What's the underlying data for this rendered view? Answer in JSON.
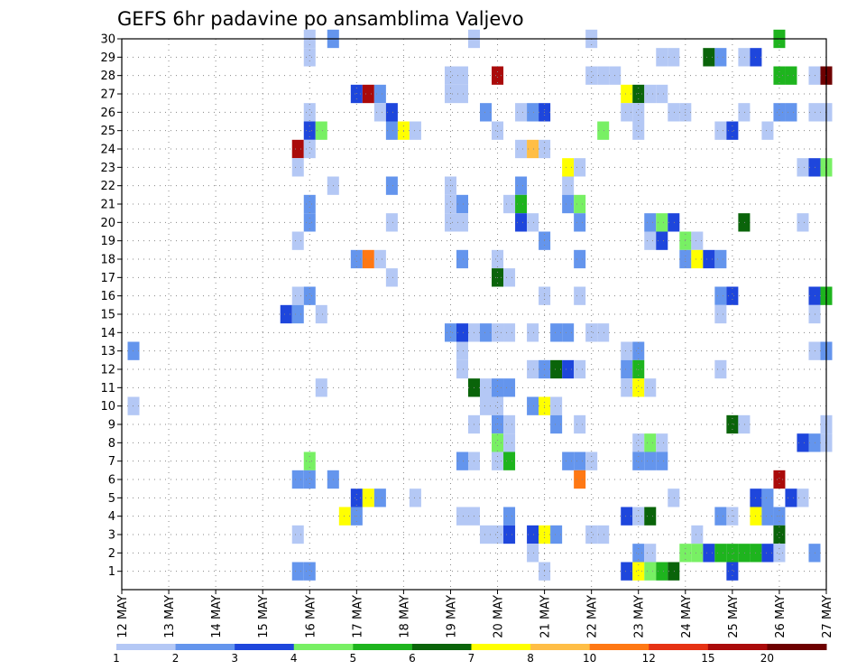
{
  "chart_data": {
    "type": "heatmap",
    "title": "GEFS 6hr padavine po ansamblima Valjevo",
    "xlabel": "",
    "ylabel": "",
    "x_ticks": [
      "12 MAY",
      "13 MAY",
      "14 MAY",
      "15 MAY",
      "16 MAY",
      "17 MAY",
      "18 MAY",
      "19 MAY",
      "20 MAY",
      "21 MAY",
      "22 MAY",
      "23 MAY",
      "24 MAY",
      "25 MAY",
      "26 MAY",
      "27 MAY"
    ],
    "x_range_days": [
      12,
      27
    ],
    "y_ticks": [
      "1",
      "2",
      "3",
      "4",
      "5",
      "6",
      "7",
      "8",
      "9",
      "10",
      "11",
      "12",
      "13",
      "14",
      "15",
      "16",
      "17",
      "18",
      "19",
      "20",
      "21",
      "22",
      "23",
      "24",
      "25",
      "26",
      "27",
      "28",
      "29",
      "30"
    ],
    "y_range": [
      0,
      30
    ],
    "grid": true,
    "legend": {
      "placement": "bottom",
      "labels": [
        "1",
        "2",
        "3",
        "4",
        "5",
        "6",
        "7",
        "8",
        "10",
        "12",
        "15",
        "20"
      ],
      "colors": [
        "#b4c8f5",
        "#6495ed",
        "#1e46dc",
        "#78f064",
        "#1eb41e",
        "#0a640a",
        "#ffff00",
        "#ffbe46",
        "#ff7814",
        "#e63214",
        "#aa0a0a",
        "#6e0000"
      ]
    },
    "cells": [
      [
        16,
        30,
        0
      ],
      [
        16.5,
        30,
        1
      ],
      [
        19.5,
        30,
        0
      ],
      [
        22,
        30,
        0
      ],
      [
        26,
        30,
        4
      ],
      [
        16,
        29,
        0
      ],
      [
        23.5,
        29,
        0
      ],
      [
        23.75,
        29,
        0
      ],
      [
        24.5,
        29,
        5
      ],
      [
        24.75,
        29,
        1
      ],
      [
        25.25,
        29,
        0
      ],
      [
        25.5,
        29,
        2
      ],
      [
        19,
        28,
        0
      ],
      [
        19.25,
        28,
        0
      ],
      [
        20,
        28,
        10
      ],
      [
        22,
        28,
        0
      ],
      [
        22.25,
        28,
        0
      ],
      [
        22.5,
        28,
        0
      ],
      [
        26,
        28,
        4
      ],
      [
        26.25,
        28,
        4
      ],
      [
        26.75,
        28,
        0
      ],
      [
        27,
        28,
        11
      ],
      [
        17,
        27,
        2
      ],
      [
        17.25,
        27,
        10
      ],
      [
        17.5,
        27,
        1
      ],
      [
        19,
        27,
        0
      ],
      [
        19.25,
        27,
        0
      ],
      [
        22.75,
        27,
        6
      ],
      [
        23,
        27,
        5
      ],
      [
        23.25,
        27,
        0
      ],
      [
        23.5,
        27,
        0
      ],
      [
        16,
        26,
        0
      ],
      [
        17.5,
        26,
        0
      ],
      [
        17.75,
        26,
        2
      ],
      [
        19.75,
        26,
        1
      ],
      [
        20.5,
        26,
        0
      ],
      [
        20.75,
        26,
        1
      ],
      [
        21,
        26,
        2
      ],
      [
        22.75,
        26,
        0
      ],
      [
        23,
        26,
        0
      ],
      [
        23.75,
        26,
        0
      ],
      [
        24,
        26,
        0
      ],
      [
        25.25,
        26,
        0
      ],
      [
        26,
        26,
        1
      ],
      [
        26.25,
        26,
        1
      ],
      [
        26.75,
        26,
        0
      ],
      [
        27,
        26,
        0
      ],
      [
        16,
        25,
        2
      ],
      [
        16.25,
        25,
        3
      ],
      [
        17.75,
        25,
        1
      ],
      [
        18,
        25,
        6
      ],
      [
        18.25,
        25,
        0
      ],
      [
        20,
        25,
        0
      ],
      [
        22.25,
        25,
        3
      ],
      [
        23,
        25,
        0
      ],
      [
        24.75,
        25,
        0
      ],
      [
        25,
        25,
        2
      ],
      [
        25.75,
        25,
        0
      ],
      [
        15.75,
        24,
        10
      ],
      [
        16,
        24,
        0
      ],
      [
        20.5,
        24,
        0
      ],
      [
        20.75,
        24,
        7
      ],
      [
        21,
        24,
        0
      ],
      [
        15.75,
        23,
        0
      ],
      [
        21.5,
        23,
        6
      ],
      [
        21.75,
        23,
        0
      ],
      [
        26.5,
        23,
        0
      ],
      [
        26.75,
        23,
        2
      ],
      [
        27,
        23,
        3
      ],
      [
        16.5,
        22,
        0
      ],
      [
        17.75,
        22,
        1
      ],
      [
        19,
        22,
        0
      ],
      [
        20.5,
        22,
        1
      ],
      [
        21.5,
        22,
        0
      ],
      [
        16,
        21,
        1
      ],
      [
        19,
        21,
        0
      ],
      [
        19.25,
        21,
        1
      ],
      [
        20.25,
        21,
        0
      ],
      [
        20.5,
        21,
        4
      ],
      [
        21.5,
        21,
        1
      ],
      [
        21.75,
        21,
        3
      ],
      [
        16,
        20,
        1
      ],
      [
        17.75,
        20,
        0
      ],
      [
        19,
        20,
        0
      ],
      [
        19.25,
        20,
        0
      ],
      [
        20.5,
        20,
        2
      ],
      [
        20.75,
        20,
        0
      ],
      [
        21.75,
        20,
        1
      ],
      [
        23.25,
        20,
        1
      ],
      [
        23.5,
        20,
        3
      ],
      [
        23.75,
        20,
        2
      ],
      [
        25.25,
        20,
        5
      ],
      [
        26.5,
        20,
        0
      ],
      [
        15.75,
        19,
        0
      ],
      [
        21,
        19,
        1
      ],
      [
        23.25,
        19,
        0
      ],
      [
        23.5,
        19,
        2
      ],
      [
        24,
        19,
        3
      ],
      [
        24.25,
        19,
        0
      ],
      [
        17,
        18,
        1
      ],
      [
        17.25,
        18,
        8
      ],
      [
        17.5,
        18,
        0
      ],
      [
        19.25,
        18,
        1
      ],
      [
        20,
        18,
        0
      ],
      [
        21.75,
        18,
        1
      ],
      [
        24,
        18,
        1
      ],
      [
        24.25,
        18,
        6
      ],
      [
        24.5,
        18,
        2
      ],
      [
        24.75,
        18,
        1
      ],
      [
        17.75,
        17,
        0
      ],
      [
        20,
        17,
        5
      ],
      [
        20.25,
        17,
        0
      ],
      [
        15.75,
        16,
        0
      ],
      [
        16,
        16,
        1
      ],
      [
        21,
        16,
        0
      ],
      [
        21.75,
        16,
        0
      ],
      [
        24.75,
        16,
        1
      ],
      [
        25,
        16,
        2
      ],
      [
        26.75,
        16,
        2
      ],
      [
        27,
        16,
        4
      ],
      [
        15.5,
        15,
        2
      ],
      [
        15.75,
        15,
        1
      ],
      [
        16.25,
        15,
        0
      ],
      [
        24.75,
        15,
        0
      ],
      [
        26.75,
        15,
        0
      ],
      [
        19,
        14,
        1
      ],
      [
        19.25,
        14,
        2
      ],
      [
        19.5,
        14,
        0
      ],
      [
        19.75,
        14,
        1
      ],
      [
        20,
        14,
        0
      ],
      [
        20.25,
        14,
        0
      ],
      [
        20.75,
        14,
        0
      ],
      [
        21.25,
        14,
        1
      ],
      [
        21.5,
        14,
        1
      ],
      [
        22,
        14,
        0
      ],
      [
        22.25,
        14,
        0
      ],
      [
        12.25,
        13,
        1
      ],
      [
        19.25,
        13,
        0
      ],
      [
        22.75,
        13,
        0
      ],
      [
        23,
        13,
        1
      ],
      [
        26.75,
        13,
        0
      ],
      [
        27,
        13,
        1
      ],
      [
        19.25,
        12,
        0
      ],
      [
        20.75,
        12,
        0
      ],
      [
        21,
        12,
        1
      ],
      [
        21.25,
        12,
        5
      ],
      [
        21.5,
        12,
        2
      ],
      [
        21.75,
        12,
        0
      ],
      [
        22.75,
        12,
        1
      ],
      [
        23,
        12,
        4
      ],
      [
        24.75,
        12,
        0
      ],
      [
        16.25,
        11,
        0
      ],
      [
        19.5,
        11,
        5
      ],
      [
        19.75,
        11,
        0
      ],
      [
        20,
        11,
        1
      ],
      [
        20.25,
        11,
        1
      ],
      [
        22.75,
        11,
        0
      ],
      [
        23,
        11,
        6
      ],
      [
        23.25,
        11,
        0
      ],
      [
        12.25,
        10,
        0
      ],
      [
        19.75,
        10,
        0
      ],
      [
        20,
        10,
        0
      ],
      [
        20.75,
        10,
        1
      ],
      [
        21,
        10,
        6
      ],
      [
        21.25,
        10,
        0
      ],
      [
        19.5,
        9,
        0
      ],
      [
        20,
        9,
        1
      ],
      [
        20.25,
        9,
        0
      ],
      [
        21.25,
        9,
        1
      ],
      [
        21.75,
        9,
        0
      ],
      [
        25,
        9,
        5
      ],
      [
        25.25,
        9,
        0
      ],
      [
        27,
        9,
        0
      ],
      [
        20,
        8,
        3
      ],
      [
        20.25,
        8,
        0
      ],
      [
        23,
        8,
        0
      ],
      [
        23.25,
        8,
        3
      ],
      [
        23.5,
        8,
        0
      ],
      [
        26.5,
        8,
        2
      ],
      [
        26.75,
        8,
        1
      ],
      [
        27,
        8,
        0
      ],
      [
        16,
        7,
        3
      ],
      [
        19.25,
        7,
        1
      ],
      [
        19.5,
        7,
        0
      ],
      [
        20,
        7,
        0
      ],
      [
        20.25,
        7,
        4
      ],
      [
        21.5,
        7,
        1
      ],
      [
        21.75,
        7,
        1
      ],
      [
        22,
        7,
        0
      ],
      [
        23,
        7,
        1
      ],
      [
        23.25,
        7,
        1
      ],
      [
        23.5,
        7,
        1
      ],
      [
        15.75,
        6,
        1
      ],
      [
        16,
        6,
        1
      ],
      [
        16.5,
        6,
        1
      ],
      [
        21.75,
        6,
        8
      ],
      [
        26,
        6,
        10
      ],
      [
        17,
        5,
        2
      ],
      [
        17.25,
        5,
        6
      ],
      [
        17.5,
        5,
        1
      ],
      [
        18.25,
        5,
        0
      ],
      [
        23.75,
        5,
        0
      ],
      [
        25.5,
        5,
        2
      ],
      [
        25.75,
        5,
        1
      ],
      [
        26.25,
        5,
        2
      ],
      [
        26.5,
        5,
        0
      ],
      [
        16.75,
        4,
        6
      ],
      [
        17,
        4,
        1
      ],
      [
        19.25,
        4,
        0
      ],
      [
        19.5,
        4,
        0
      ],
      [
        20.25,
        4,
        1
      ],
      [
        22.75,
        4,
        2
      ],
      [
        23,
        4,
        0
      ],
      [
        23.25,
        4,
        5
      ],
      [
        24.75,
        4,
        1
      ],
      [
        25,
        4,
        0
      ],
      [
        25.5,
        4,
        6
      ],
      [
        25.75,
        4,
        1
      ],
      [
        26,
        4,
        1
      ],
      [
        15.75,
        3,
        0
      ],
      [
        19.75,
        3,
        0
      ],
      [
        20,
        3,
        0
      ],
      [
        20.25,
        3,
        2
      ],
      [
        20.75,
        3,
        2
      ],
      [
        21,
        3,
        6
      ],
      [
        21.25,
        3,
        1
      ],
      [
        22,
        3,
        0
      ],
      [
        22.25,
        3,
        0
      ],
      [
        24.25,
        3,
        0
      ],
      [
        26,
        3,
        5
      ],
      [
        20.75,
        2,
        0
      ],
      [
        23,
        2,
        1
      ],
      [
        23.25,
        2,
        0
      ],
      [
        24,
        2,
        3
      ],
      [
        24.25,
        2,
        3
      ],
      [
        24.5,
        2,
        2
      ],
      [
        24.75,
        2,
        4
      ],
      [
        25,
        2,
        4
      ],
      [
        25.25,
        2,
        4
      ],
      [
        25.5,
        2,
        4
      ],
      [
        25.75,
        2,
        2
      ],
      [
        26,
        2,
        0
      ],
      [
        26.75,
        2,
        1
      ],
      [
        15.75,
        1,
        1
      ],
      [
        16,
        1,
        1
      ],
      [
        21,
        1,
        0
      ],
      [
        22.75,
        1,
        2
      ],
      [
        23,
        1,
        6
      ],
      [
        23.25,
        1,
        3
      ],
      [
        23.5,
        1,
        4
      ],
      [
        23.75,
        1,
        5
      ],
      [
        25,
        1,
        2
      ]
    ]
  }
}
